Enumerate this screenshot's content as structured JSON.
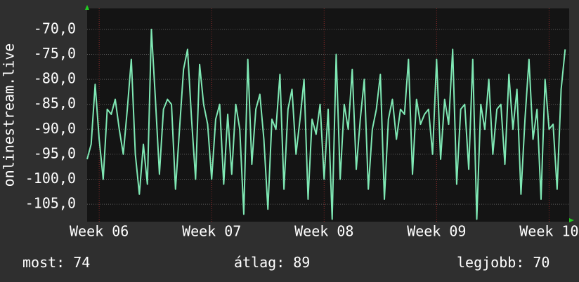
{
  "chart_data": {
    "type": "line",
    "y_label": "onlinestream.live",
    "color": "#7fe8b4",
    "grid": true,
    "x": [
      -0.75,
      -0.5,
      -0.25,
      0,
      0.25,
      0.5,
      0.75,
      1,
      1.25,
      1.5,
      1.75,
      2,
      2.25,
      2.5,
      2.75,
      3,
      3.25,
      3.5,
      3.75,
      4,
      4.25,
      4.5,
      4.75,
      5,
      5.25,
      5.5,
      5.75,
      6,
      6.25,
      6.5,
      6.75,
      7,
      7.25,
      7.5,
      7.75,
      8,
      8.25,
      8.5,
      8.75,
      9,
      9.25,
      9.5,
      9.75,
      10,
      10.25,
      10.5,
      10.75,
      11,
      11.25,
      11.5,
      11.75,
      12,
      12.25,
      12.5,
      12.75,
      13,
      13.25,
      13.5,
      13.75,
      14,
      14.25,
      14.5,
      14.75,
      15,
      15.25,
      15.5,
      15.75,
      16,
      16.25,
      16.5,
      16.75,
      17,
      17.25,
      17.5,
      17.75,
      18,
      18.25,
      18.5,
      18.75,
      19,
      19.25,
      19.5,
      19.75,
      20,
      20.25,
      20.5,
      20.75,
      21,
      21.25,
      21.5,
      21.75,
      22,
      22.25,
      22.5,
      22.75,
      23,
      23.25,
      23.5,
      23.75,
      24,
      24.25,
      24.5,
      24.75,
      25,
      25.25,
      25.5,
      25.75,
      26,
      26.25,
      26.5,
      26.75,
      27,
      27.25,
      27.5,
      27.75,
      28,
      28.25,
      28.5,
      28.75,
      29
    ],
    "values": [
      -96,
      -93,
      -81,
      -92,
      -100,
      -86,
      -87,
      -84,
      -90,
      -95,
      -86,
      -76,
      -95,
      -103,
      -93,
      -101,
      -70,
      -84,
      -99,
      -86,
      -84,
      -85,
      -102,
      -90,
      -78,
      -74,
      -88,
      -100,
      -77,
      -85,
      -89,
      -100,
      -88,
      -85,
      -101,
      -87,
      -99,
      -85,
      -90,
      -107,
      -76,
      -97,
      -86,
      -83,
      -92,
      -106,
      -88,
      -90,
      -79,
      -102,
      -86,
      -82,
      -95,
      -88,
      -80,
      -104,
      -88,
      -91,
      -85,
      -100,
      -86,
      -108,
      -75,
      -100,
      -85,
      -90,
      -78,
      -98,
      -88,
      -80,
      -102,
      -90,
      -86,
      -79,
      -104,
      -88,
      -84,
      -92,
      -86,
      -87,
      -76,
      -99,
      -84,
      -89,
      -87,
      -86,
      -95,
      -76,
      -96,
      -84,
      -89,
      -74,
      -101,
      -86,
      -85,
      -98,
      -76,
      -108,
      -85,
      -90,
      -80,
      -95,
      -86,
      -85,
      -97,
      -79,
      -90,
      -82,
      -103,
      -88,
      -76,
      -92,
      -86,
      -104,
      -80,
      -90,
      -89,
      -102,
      -82,
      -74
    ],
    "xlim": [
      -0.75,
      29.25
    ],
    "xticks": [
      {
        "value": 0,
        "label": "Week 06"
      },
      {
        "value": 7,
        "label": "Week 07"
      },
      {
        "value": 14,
        "label": "Week 08"
      },
      {
        "value": 21,
        "label": "Week 09"
      },
      {
        "value": 28,
        "label": "Week 10"
      }
    ],
    "ylim": [
      -108.5,
      -65.8
    ],
    "yticks": [
      {
        "value": -105,
        "label": "-105,0"
      },
      {
        "value": -100,
        "label": "-100,0"
      },
      {
        "value": -95,
        "label": "-95,0"
      },
      {
        "value": -90,
        "label": "-90,0"
      },
      {
        "value": -85,
        "label": "-85,0"
      },
      {
        "value": -80,
        "label": "-80,0"
      },
      {
        "value": -75,
        "label": "-75,0"
      },
      {
        "value": -70,
        "label": "-70,0"
      }
    ],
    "stats": [
      {
        "label": "most:",
        "value": 74
      },
      {
        "label": "átlag:",
        "value": 89
      },
      {
        "label": "legjobb:",
        "value": 70
      }
    ]
  }
}
